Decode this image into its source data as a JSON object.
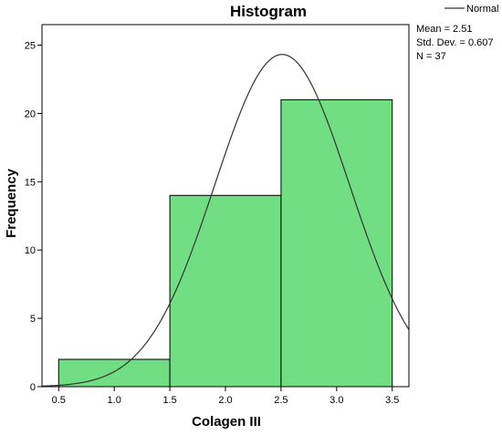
{
  "chart_data": {
    "type": "bar",
    "title": "Histogram",
    "xlabel": "Colagen III",
    "ylabel": "Frequency",
    "bins": [
      {
        "start": 0.5,
        "end": 1.5,
        "value": 2
      },
      {
        "start": 1.5,
        "end": 2.5,
        "value": 14
      },
      {
        "start": 2.5,
        "end": 3.5,
        "value": 21
      }
    ],
    "xlim": [
      0.35,
      3.65
    ],
    "ylim": [
      0,
      26.5
    ],
    "xticks": [
      "0.5",
      "1.0",
      "1.5",
      "2.0",
      "2.5",
      "3.0",
      "3.5"
    ],
    "yticks": [
      "0",
      "5",
      "10",
      "15",
      "20",
      "25"
    ],
    "bar_color": "#72DE84",
    "normal_curve": {
      "mean": 2.51,
      "std_dev": 0.607,
      "n": 37,
      "bin_width": 1.0
    },
    "legend": {
      "label": "Normal",
      "position": "top-right"
    },
    "stats_text": [
      "Mean = 2.51",
      "Std. Dev. = 0.607",
      "N = 37"
    ],
    "grid": false
  }
}
